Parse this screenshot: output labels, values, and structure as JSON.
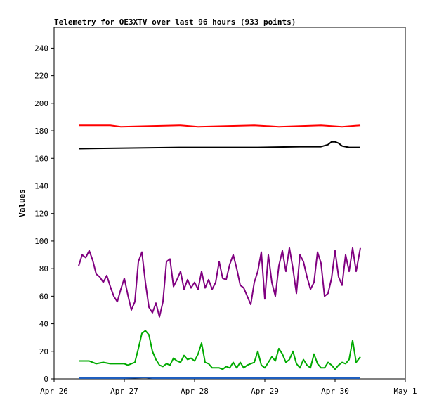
{
  "chart_data": {
    "type": "line",
    "title": "Telemetry for OE3XTV over last 96 hours (933 points)",
    "xlabel": "",
    "ylabel": "Values",
    "x_ticks": [
      "Apr 26",
      "Apr 27",
      "Apr 28",
      "Apr 29",
      "Apr 30",
      "May 1"
    ],
    "y_ticks": [
      0,
      20,
      40,
      60,
      80,
      100,
      120,
      140,
      160,
      180,
      200,
      220,
      240
    ],
    "xlim": [
      0,
      5
    ],
    "ylim": [
      0,
      255
    ],
    "grid": false,
    "legend": "none",
    "series": [
      {
        "color": "#ff0000",
        "x": [
          0.35,
          0.8,
          0.95,
          1.8,
          2.05,
          2.85,
          3.2,
          3.8,
          4.1,
          4.36
        ],
        "values": [
          184,
          184,
          183,
          184,
          183,
          184,
          183,
          184,
          183,
          184
        ]
      },
      {
        "color": "#000000",
        "x": [
          0.35,
          1.0,
          1.8,
          2.3,
          2.9,
          3.5,
          3.8,
          3.9,
          3.95,
          4.0,
          4.05,
          4.1,
          4.2,
          4.36
        ],
        "values": [
          167,
          167.5,
          168,
          168,
          168,
          168.5,
          168.5,
          170,
          172,
          172,
          171,
          169,
          168,
          168
        ]
      },
      {
        "color": "#800080",
        "x": [
          0.35,
          0.4,
          0.45,
          0.5,
          0.55,
          0.6,
          0.65,
          0.7,
          0.75,
          0.8,
          0.85,
          0.9,
          0.95,
          1.0,
          1.05,
          1.1,
          1.15,
          1.2,
          1.25,
          1.3,
          1.35,
          1.4,
          1.45,
          1.5,
          1.55,
          1.6,
          1.65,
          1.7,
          1.75,
          1.8,
          1.85,
          1.9,
          1.95,
          2.0,
          2.05,
          2.1,
          2.15,
          2.2,
          2.25,
          2.3,
          2.35,
          2.4,
          2.45,
          2.5,
          2.55,
          2.6,
          2.65,
          2.7,
          2.75,
          2.8,
          2.85,
          2.9,
          2.95,
          3.0,
          3.05,
          3.1,
          3.15,
          3.2,
          3.25,
          3.3,
          3.35,
          3.4,
          3.45,
          3.5,
          3.55,
          3.6,
          3.65,
          3.7,
          3.75,
          3.8,
          3.85,
          3.9,
          3.95,
          4.0,
          4.05,
          4.1,
          4.15,
          4.2,
          4.25,
          4.3,
          4.36
        ],
        "values": [
          82,
          90,
          88,
          93,
          86,
          76,
          74,
          70,
          75,
          67,
          60,
          56,
          65,
          73,
          61,
          50,
          56,
          85,
          92,
          70,
          52,
          48,
          55,
          45,
          56,
          85,
          87,
          67,
          72,
          78,
          65,
          72,
          66,
          70,
          65,
          78,
          66,
          72,
          65,
          70,
          85,
          73,
          72,
          83,
          90,
          80,
          68,
          66,
          60,
          54,
          70,
          78,
          92,
          58,
          90,
          70,
          60,
          82,
          93,
          78,
          95,
          80,
          62,
          90,
          85,
          74,
          65,
          70,
          92,
          84,
          60,
          62,
          73,
          93,
          74,
          68,
          90,
          78,
          95,
          78,
          95
        ]
      },
      {
        "color": "#00aa00",
        "x": [
          0.35,
          0.5,
          0.6,
          0.7,
          0.8,
          0.9,
          1.0,
          1.05,
          1.1,
          1.15,
          1.2,
          1.25,
          1.3,
          1.35,
          1.4,
          1.45,
          1.5,
          1.55,
          1.6,
          1.65,
          1.7,
          1.75,
          1.8,
          1.85,
          1.9,
          1.95,
          2.0,
          2.05,
          2.1,
          2.15,
          2.2,
          2.25,
          2.3,
          2.35,
          2.4,
          2.45,
          2.5,
          2.55,
          2.6,
          2.65,
          2.7,
          2.75,
          2.8,
          2.85,
          2.9,
          2.95,
          3.0,
          3.05,
          3.1,
          3.15,
          3.2,
          3.25,
          3.3,
          3.35,
          3.4,
          3.45,
          3.5,
          3.55,
          3.6,
          3.65,
          3.7,
          3.75,
          3.8,
          3.85,
          3.9,
          3.95,
          4.0,
          4.05,
          4.1,
          4.15,
          4.2,
          4.25,
          4.3,
          4.36
        ],
        "values": [
          13,
          13,
          11,
          12,
          11,
          11,
          11,
          10,
          11,
          12,
          22,
          33,
          35,
          32,
          20,
          14,
          10,
          9,
          11,
          10,
          15,
          13,
          12,
          17,
          14,
          15,
          13,
          18,
          26,
          12,
          11,
          8,
          8,
          8,
          7,
          9,
          8,
          12,
          8,
          12,
          8,
          10,
          11,
          12,
          20,
          10,
          8,
          12,
          16,
          13,
          22,
          18,
          12,
          14,
          20,
          11,
          8,
          14,
          10,
          8,
          18,
          11,
          8,
          8,
          12,
          10,
          7,
          10,
          12,
          11,
          14,
          28,
          12,
          16
        ]
      },
      {
        "color": "#1f5fbf",
        "x": [
          0.35,
          1.0,
          1.3,
          1.4,
          2.0,
          3.0,
          4.0,
          4.36
        ],
        "values": [
          0.5,
          0.5,
          1,
          0.5,
          0.5,
          0.5,
          0.5,
          0.5
        ]
      }
    ]
  }
}
